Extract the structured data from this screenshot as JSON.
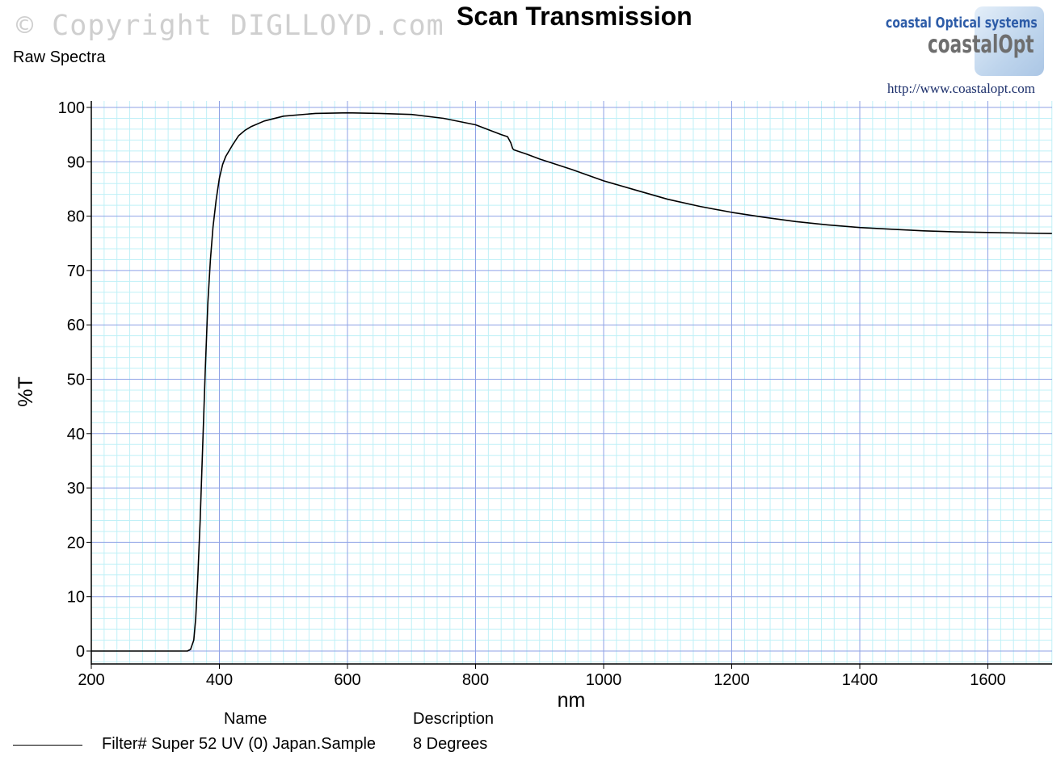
{
  "header": {
    "copyright": "© Copyright DIGLLOYD.com",
    "title": "Scan Transmission",
    "subtitle": "Raw Spectra"
  },
  "logo": {
    "line1": "coastal Optical systems",
    "line2": "coastalOpt",
    "url": "http://www.coastalopt.com"
  },
  "legend": {
    "name_header": "Name",
    "description_header": "Description",
    "entries": [
      {
        "name": "Filter# Super 52 UV (0) Japan.Sample",
        "description": "8 Degrees",
        "color": "#000000"
      }
    ]
  },
  "colors": {
    "major_grid": "#8fa2e6",
    "minor_grid": "#bff0f7",
    "curve": "#000000"
  },
  "chart_data": {
    "type": "line",
    "title": "Scan Transmission",
    "subtitle": "Raw Spectra",
    "xlabel": "nm",
    "ylabel": "%T",
    "xlim": [
      200,
      1700
    ],
    "ylim": [
      -2,
      101
    ],
    "xticks": [
      200,
      400,
      600,
      800,
      1000,
      1200,
      1400,
      1600
    ],
    "yticks": [
      0,
      10,
      20,
      30,
      40,
      50,
      60,
      70,
      80,
      90,
      100
    ],
    "grid": true,
    "legend_position": "bottom-left",
    "series": [
      {
        "name": "Filter# Super 52 UV (0) Japan.Sample",
        "description": "8 Degrees",
        "x": [
          200,
          300,
          350,
          355,
          360,
          363,
          366,
          370,
          374,
          378,
          382,
          386,
          390,
          395,
          400,
          405,
          410,
          420,
          430,
          440,
          450,
          470,
          500,
          550,
          600,
          650,
          700,
          750,
          800,
          840,
          850,
          855,
          858,
          860,
          880,
          900,
          950,
          1000,
          1050,
          1100,
          1150,
          1200,
          1250,
          1300,
          1350,
          1400,
          1450,
          1500,
          1550,
          1600,
          1650,
          1700
        ],
        "y": [
          0,
          0,
          0,
          0.3,
          2,
          6,
          13,
          24,
          38,
          52,
          64,
          72,
          78,
          83,
          87,
          89.5,
          91,
          93,
          94.8,
          95.8,
          96.5,
          97.5,
          98.4,
          98.9,
          99,
          98.9,
          98.7,
          98,
          96.8,
          95,
          94.6,
          93.5,
          92.4,
          92.2,
          91.4,
          90.5,
          88.6,
          86.5,
          84.8,
          83.1,
          81.8,
          80.7,
          79.8,
          79,
          78.4,
          77.9,
          77.6,
          77.3,
          77.1,
          77,
          76.9,
          76.8
        ]
      }
    ]
  }
}
